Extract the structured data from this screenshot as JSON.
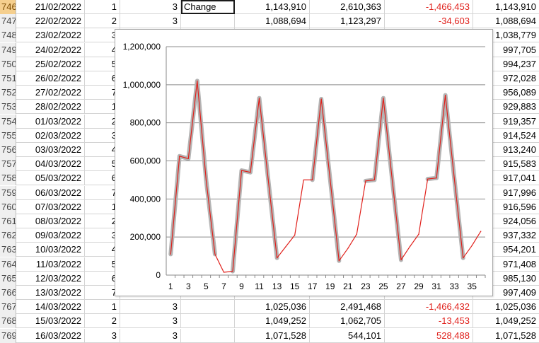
{
  "sheet": {
    "rows": [
      {
        "num": "746",
        "date": "21/02/2022",
        "a": "1",
        "b": "3",
        "c": "Change",
        "d": "1,143,910",
        "e": "2,610,363",
        "f": "-1,466,453",
        "g": "1,143,910"
      },
      {
        "num": "747",
        "date": "22/02/2022",
        "a": "2",
        "b": "3",
        "c": "",
        "d": "1,088,694",
        "e": "1,123,297",
        "f": "-34,603",
        "g": "1,088,694"
      },
      {
        "num": "748",
        "date": "23/02/2022",
        "a": "3",
        "b": "",
        "c": "",
        "d": "",
        "e": "",
        "f": "",
        "g": "1,038,779"
      },
      {
        "num": "749",
        "date": "24/02/2022",
        "a": "4",
        "b": "",
        "c": "",
        "d": "",
        "e": "",
        "f": "",
        "g": "997,705"
      },
      {
        "num": "750",
        "date": "25/02/2022",
        "a": "5",
        "b": "",
        "c": "",
        "d": "",
        "e": "",
        "f": "",
        "g": "994,237"
      },
      {
        "num": "751",
        "date": "26/02/2022",
        "a": "6",
        "b": "",
        "c": "",
        "d": "",
        "e": "",
        "f": "",
        "g": "972,028"
      },
      {
        "num": "752",
        "date": "27/02/2022",
        "a": "7",
        "b": "",
        "c": "",
        "d": "",
        "e": "",
        "f": "",
        "g": "956,089"
      },
      {
        "num": "753",
        "date": "28/02/2022",
        "a": "1",
        "b": "",
        "c": "",
        "d": "",
        "e": "",
        "f": "",
        "g": "929,883"
      },
      {
        "num": "754",
        "date": "01/03/2022",
        "a": "2",
        "b": "",
        "c": "",
        "d": "",
        "e": "",
        "f": "",
        "g": "919,357"
      },
      {
        "num": "755",
        "date": "02/03/2022",
        "a": "3",
        "b": "",
        "c": "",
        "d": "",
        "e": "",
        "f": "",
        "g": "914,524"
      },
      {
        "num": "756",
        "date": "03/03/2022",
        "a": "4",
        "b": "",
        "c": "",
        "d": "",
        "e": "",
        "f": "",
        "g": "913,240"
      },
      {
        "num": "757",
        "date": "04/03/2022",
        "a": "5",
        "b": "",
        "c": "",
        "d": "",
        "e": "",
        "f": "",
        "g": "915,583"
      },
      {
        "num": "758",
        "date": "05/03/2022",
        "a": "6",
        "b": "",
        "c": "",
        "d": "",
        "e": "",
        "f": "",
        "g": "917,041"
      },
      {
        "num": "759",
        "date": "06/03/2022",
        "a": "7",
        "b": "",
        "c": "",
        "d": "",
        "e": "",
        "f": "",
        "g": "917,996"
      },
      {
        "num": "760",
        "date": "07/03/2022",
        "a": "1",
        "b": "",
        "c": "",
        "d": "",
        "e": "",
        "f": "",
        "g": "916,596"
      },
      {
        "num": "761",
        "date": "08/03/2022",
        "a": "2",
        "b": "",
        "c": "",
        "d": "",
        "e": "",
        "f": "",
        "g": "924,056"
      },
      {
        "num": "762",
        "date": "09/03/2022",
        "a": "3",
        "b": "",
        "c": "",
        "d": "",
        "e": "",
        "f": "",
        "g": "937,332"
      },
      {
        "num": "763",
        "date": "10/03/2022",
        "a": "4",
        "b": "",
        "c": "",
        "d": "",
        "e": "",
        "f": "",
        "g": "954,201"
      },
      {
        "num": "764",
        "date": "11/03/2022",
        "a": "5",
        "b": "",
        "c": "",
        "d": "",
        "e": "",
        "f": "",
        "g": "971,408"
      },
      {
        "num": "765",
        "date": "12/03/2022",
        "a": "6",
        "b": "",
        "c": "",
        "d": "",
        "e": "",
        "f": "",
        "g": "985,130"
      },
      {
        "num": "766",
        "date": "13/03/2022",
        "a": "7",
        "b": "",
        "c": "",
        "d": "",
        "e": "",
        "f": "",
        "g": "997,409"
      },
      {
        "num": "767",
        "date": "14/03/2022",
        "a": "1",
        "b": "3",
        "c": "",
        "d": "1,025,036",
        "e": "2,491,468",
        "f": "-1,466,432",
        "g": "1,025,036"
      },
      {
        "num": "768",
        "date": "15/03/2022",
        "a": "2",
        "b": "3",
        "c": "",
        "d": "1,049,252",
        "e": "1,062,705",
        "f": "-13,453",
        "g": "1,049,252"
      },
      {
        "num": "769",
        "date": "16/03/2022",
        "a": "3",
        "b": "3",
        "c": "",
        "d": "1,071,528",
        "e": "544,101",
        "f": "528,488",
        "g": "1,071,528"
      }
    ],
    "active_row": "746",
    "selected_cell_text": "Change"
  },
  "chart_data": {
    "type": "line",
    "title": "",
    "xlabel": "",
    "ylabel": "",
    "ylim": [
      0,
      1200000
    ],
    "yticks": [
      "0",
      "200,000",
      "400,000",
      "600,000",
      "800,000",
      "1,000,000",
      "1,200,000"
    ],
    "xticks": [
      "1",
      "3",
      "5",
      "7",
      "9",
      "11",
      "13",
      "15",
      "17",
      "19",
      "21",
      "23",
      "25",
      "27",
      "29",
      "31",
      "33",
      "35"
    ],
    "x": [
      1,
      2,
      3,
      4,
      5,
      6,
      7,
      8,
      9,
      10,
      11,
      12,
      13,
      14,
      15,
      16,
      17,
      18,
      19,
      20,
      21,
      22,
      23,
      24,
      25,
      26,
      27,
      28,
      29,
      30,
      31,
      32,
      33,
      34,
      35,
      36
    ],
    "series": [
      {
        "values": [
          110000,
          625000,
          612000,
          1020000,
          500000,
          110000,
          15000,
          20000,
          550000,
          540000,
          930000,
          505000,
          90000,
          150000,
          210000,
          500000,
          500000,
          925000,
          500000,
          75000,
          140000,
          215000,
          495000,
          500000,
          930000,
          500000,
          80000,
          150000,
          215000,
          505000,
          510000,
          945000,
          510000,
          90000,
          155000,
          230000
        ],
        "color": "#e0201b"
      },
      {
        "values": [
          110000,
          625000,
          612000,
          1020000,
          500000,
          110000,
          null,
          20000,
          550000,
          540000,
          930000,
          505000,
          90000,
          null,
          null,
          null,
          500000,
          925000,
          500000,
          75000,
          null,
          null,
          495000,
          500000,
          930000,
          500000,
          80000,
          null,
          null,
          505000,
          510000,
          945000,
          510000,
          90000,
          null,
          null
        ],
        "color": "#b4b4b4"
      }
    ],
    "grid": true,
    "legend": "none"
  }
}
